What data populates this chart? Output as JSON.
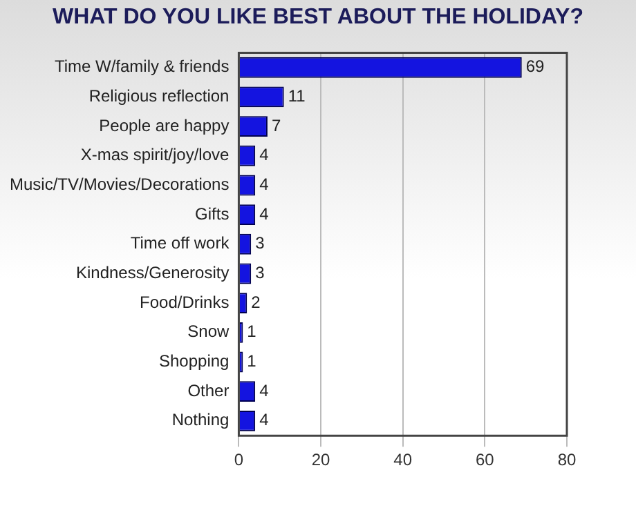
{
  "chart_data": {
    "type": "bar",
    "orientation": "horizontal",
    "title": "WHAT DO YOU LIKE BEST ABOUT THE HOLIDAY?",
    "categories": [
      "Time W/family & friends",
      "Religious reflection",
      "People are happy",
      "X-mas spirit/joy/love",
      "Music/TV/Movies/Decorations",
      "Gifts",
      "Time off work",
      "Kindness/Generosity",
      "Food/Drinks",
      "Snow",
      "Shopping",
      "Other",
      "Nothing"
    ],
    "values": [
      69,
      11,
      7,
      4,
      4,
      4,
      3,
      3,
      2,
      1,
      1,
      4,
      4
    ],
    "color": "#1414e0",
    "xlim": [
      0,
      80
    ],
    "xticks": [
      0,
      20,
      40,
      60,
      80
    ],
    "grid": "x",
    "data_labels": true,
    "legend": false
  }
}
